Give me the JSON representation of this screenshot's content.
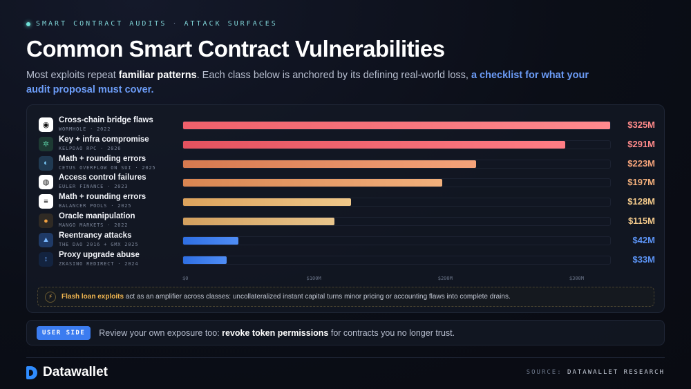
{
  "header": {
    "kicker_left": "SMART CONTRACT AUDITS",
    "kicker_sep": "·",
    "kicker_right": "ATTACK SURFACES",
    "title": "Common Smart Contract Vulnerabilities",
    "subtitle_1": "Most exploits repeat ",
    "subtitle_bold": "familiar patterns",
    "subtitle_2": ". Each class below is anchored by its defining real-world loss, ",
    "subtitle_highlight": "a checklist for what your audit proposal must cover."
  },
  "chart_data": {
    "type": "bar",
    "orientation": "horizontal",
    "xlim": [
      0,
      325
    ],
    "ticks": [
      {
        "value": 0,
        "label": "$0"
      },
      {
        "value": 100,
        "label": "$100M"
      },
      {
        "value": 200,
        "label": "$200M"
      },
      {
        "value": 300,
        "label": "$300M"
      }
    ],
    "items": [
      {
        "label": "Cross-chain bridge flaws",
        "sub": "WORMHOLE · 2022",
        "value": 325,
        "value_label": "$325M",
        "color": "#f0606b",
        "color_end": "#ff8a8e",
        "value_color": "#ff8a8a",
        "icon": "wormhole-icon",
        "icon_bg": "#ffffff",
        "icon_fg": "#111111",
        "glyph": "◉"
      },
      {
        "label": "Key + infra compromise",
        "sub": "KELPDAO RPC · 2026",
        "value": 291,
        "value_label": "$291M",
        "color": "#e4525f",
        "color_end": "#ff7d85",
        "value_color": "#ff8a8a",
        "icon": "kelpdao-icon",
        "icon_bg": "#1d3a33",
        "icon_fg": "#59c9a0",
        "glyph": "✲"
      },
      {
        "label": "Math + rounding errors",
        "sub": "CETUS OVERFLOW ON SUI · 2025",
        "value": 223,
        "value_label": "$223M",
        "color": "#d6794f",
        "color_end": "#f4a37a",
        "value_color": "#f4a37a",
        "icon": "cetus-icon",
        "icon_bg": "#203a52",
        "icon_fg": "#7fd0ff",
        "glyph": "◐"
      },
      {
        "label": "Access control failures",
        "sub": "EULER FINANCE · 2023",
        "value": 197,
        "value_label": "$197M",
        "color": "#d98551",
        "color_end": "#f2b07c",
        "value_color": "#f4b07c",
        "icon": "euler-icon",
        "icon_bg": "#ffffff",
        "icon_fg": "#111111",
        "glyph": "◍"
      },
      {
        "label": "Math + rounding errors",
        "sub": "BALANCER POOLS · 2025",
        "value": 128,
        "value_label": "$128M",
        "color": "#dca25c",
        "color_end": "#efc88a",
        "value_color": "#f2c98b",
        "icon": "balancer-icon",
        "icon_bg": "#ffffff",
        "icon_fg": "#111111",
        "glyph": "≡"
      },
      {
        "label": "Oracle manipulation",
        "sub": "MANGO MARKETS · 2022",
        "value": 115,
        "value_label": "$115M",
        "color": "#d3a05e",
        "color_end": "#e8c58c",
        "value_color": "#f2c98b",
        "icon": "mango-icon",
        "icon_bg": "#2f2a24",
        "icon_fg": "#f0a040",
        "glyph": "●"
      },
      {
        "label": "Reentrancy attacks",
        "sub": "THE DAO 2016 + GMX 2025",
        "value": 42,
        "value_label": "$42M",
        "color": "#2f6fe3",
        "color_end": "#4f8df5",
        "value_color": "#5b93f4",
        "icon": "gmx-icon",
        "icon_bg": "#1f3a66",
        "icon_fg": "#7ab8ff",
        "glyph": "▲"
      },
      {
        "label": "Proxy upgrade abuse",
        "sub": "ZKASINO REDIRECT · 2024",
        "value": 33,
        "value_label": "$33M",
        "color": "#2f6fe3",
        "color_end": "#4f8df5",
        "value_color": "#5b93f4",
        "icon": "zkasino-icon",
        "icon_bg": "#13233f",
        "icon_fg": "#6aa8ff",
        "glyph": "↕"
      }
    ]
  },
  "note": {
    "bold": "Flash loan exploits",
    "text": " act as an amplifier across classes: uncollateralized instant capital turns minor pricing or accounting flaws into complete drains.",
    "icon": "lightning-icon"
  },
  "user_side": {
    "badge": "USER SIDE",
    "text_1": "Review your own exposure too: ",
    "bold": "revoke token permissions",
    "text_2": " for contracts you no longer trust."
  },
  "footer": {
    "brand": "Datawallet",
    "source_label": "SOURCE:",
    "source_value": "DATAWALLET RESEARCH"
  }
}
